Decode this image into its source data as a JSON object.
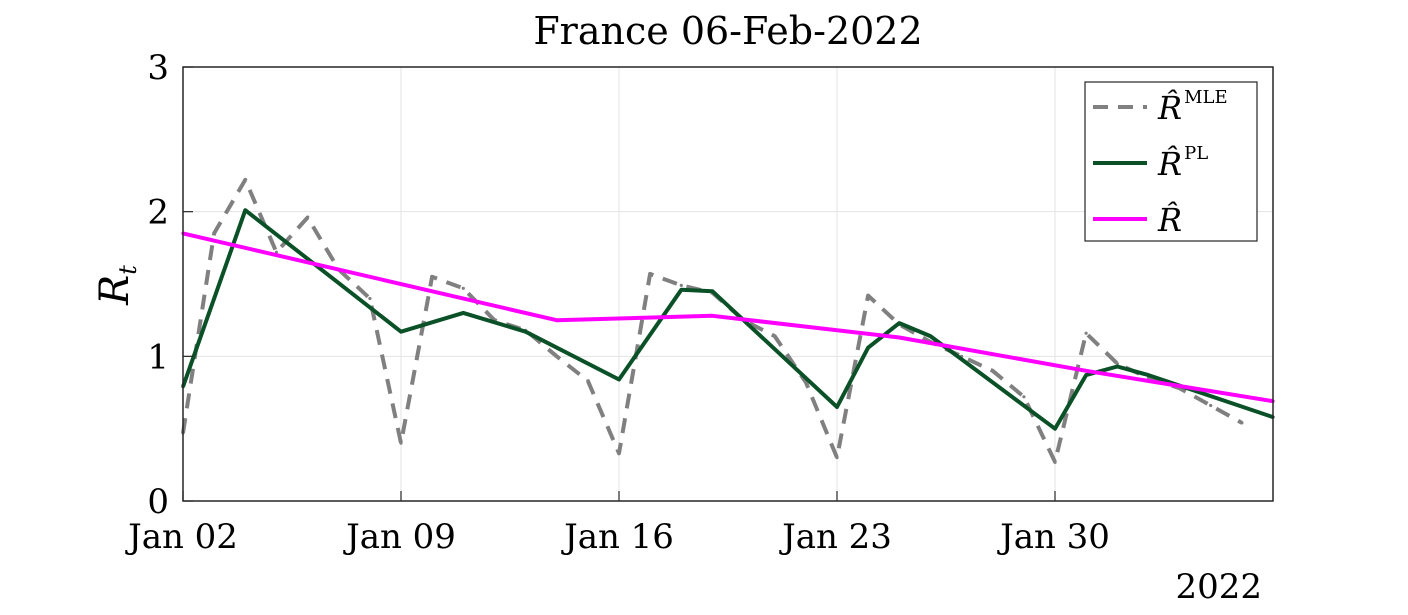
{
  "chart_data": {
    "type": "line",
    "title": "France 06-Feb-2022",
    "ylabel": "R",
    "ylabel_sub": "t",
    "xlim": [
      "2022-01-02",
      "2022-02-06"
    ],
    "ylim": [
      0,
      3
    ],
    "x_ticks": [
      {
        "date": "2022-01-02",
        "label": "Jan 02"
      },
      {
        "date": "2022-01-09",
        "label": "Jan 09"
      },
      {
        "date": "2022-01-16",
        "label": "Jan 16"
      },
      {
        "date": "2022-01-23",
        "label": "Jan 23"
      },
      {
        "date": "2022-01-30",
        "label": "Jan 30"
      }
    ],
    "y_ticks": [
      0,
      1,
      2,
      3
    ],
    "year_label": "2022",
    "grid": true,
    "legend_position": "top-right",
    "series": [
      {
        "legend_base": "R̂",
        "legend_sup": "MLE",
        "color": "#808080",
        "style": "dashed",
        "points": [
          [
            "2022-01-02",
            0.47
          ],
          [
            "2022-01-03",
            1.85
          ],
          [
            "2022-01-04",
            2.22
          ],
          [
            "2022-01-05",
            1.72
          ],
          [
            "2022-01-06",
            1.96
          ],
          [
            "2022-01-07",
            1.6
          ],
          [
            "2022-01-08",
            1.4
          ],
          [
            "2022-01-09",
            0.4
          ],
          [
            "2022-01-10",
            1.55
          ],
          [
            "2022-01-11",
            1.47
          ],
          [
            "2022-01-12",
            1.25
          ],
          [
            "2022-01-13",
            1.18
          ],
          [
            "2022-01-14",
            1.0
          ],
          [
            "2022-01-15",
            0.83
          ],
          [
            "2022-01-16",
            0.33
          ],
          [
            "2022-01-17",
            1.57
          ],
          [
            "2022-01-18",
            1.49
          ],
          [
            "2022-01-19",
            1.44
          ],
          [
            "2022-01-20",
            1.25
          ],
          [
            "2022-01-21",
            1.14
          ],
          [
            "2022-01-22",
            0.82
          ],
          [
            "2022-01-23",
            0.3
          ],
          [
            "2022-01-24",
            1.42
          ],
          [
            "2022-01-25",
            1.22
          ],
          [
            "2022-01-26",
            1.1
          ],
          [
            "2022-01-27",
            1.0
          ],
          [
            "2022-01-28",
            0.9
          ],
          [
            "2022-01-29",
            0.72
          ],
          [
            "2022-01-30",
            0.27
          ],
          [
            "2022-01-31",
            1.16
          ],
          [
            "2022-02-01",
            0.95
          ],
          [
            "2022-02-02",
            0.85
          ],
          [
            "2022-02-03",
            0.78
          ],
          [
            "2022-02-04",
            0.66
          ],
          [
            "2022-02-05",
            0.54
          ]
        ]
      },
      {
        "legend_base": "R̂",
        "legend_sup": "PL",
        "color": "#0b5128",
        "style": "solid",
        "points": [
          [
            "2022-01-02",
            0.79
          ],
          [
            "2022-01-04",
            2.01
          ],
          [
            "2022-01-09",
            1.17
          ],
          [
            "2022-01-11",
            1.3
          ],
          [
            "2022-01-13",
            1.17
          ],
          [
            "2022-01-16",
            0.84
          ],
          [
            "2022-01-18",
            1.46
          ],
          [
            "2022-01-19",
            1.45
          ],
          [
            "2022-01-23",
            0.65
          ],
          [
            "2022-01-24",
            1.06
          ],
          [
            "2022-01-25",
            1.23
          ],
          [
            "2022-01-26",
            1.14
          ],
          [
            "2022-01-30",
            0.5
          ],
          [
            "2022-01-31",
            0.87
          ],
          [
            "2022-02-01",
            0.93
          ],
          [
            "2022-02-02",
            0.87
          ],
          [
            "2022-02-06",
            0.58
          ]
        ]
      },
      {
        "legend_base": "R̂",
        "legend_sup": "",
        "color": "#ff00ff",
        "style": "solid",
        "points": [
          [
            "2022-01-02",
            1.85
          ],
          [
            "2022-01-14",
            1.25
          ],
          [
            "2022-01-19",
            1.28
          ],
          [
            "2022-01-25",
            1.13
          ],
          [
            "2022-01-31",
            0.9
          ],
          [
            "2022-02-06",
            0.69
          ]
        ]
      }
    ]
  }
}
